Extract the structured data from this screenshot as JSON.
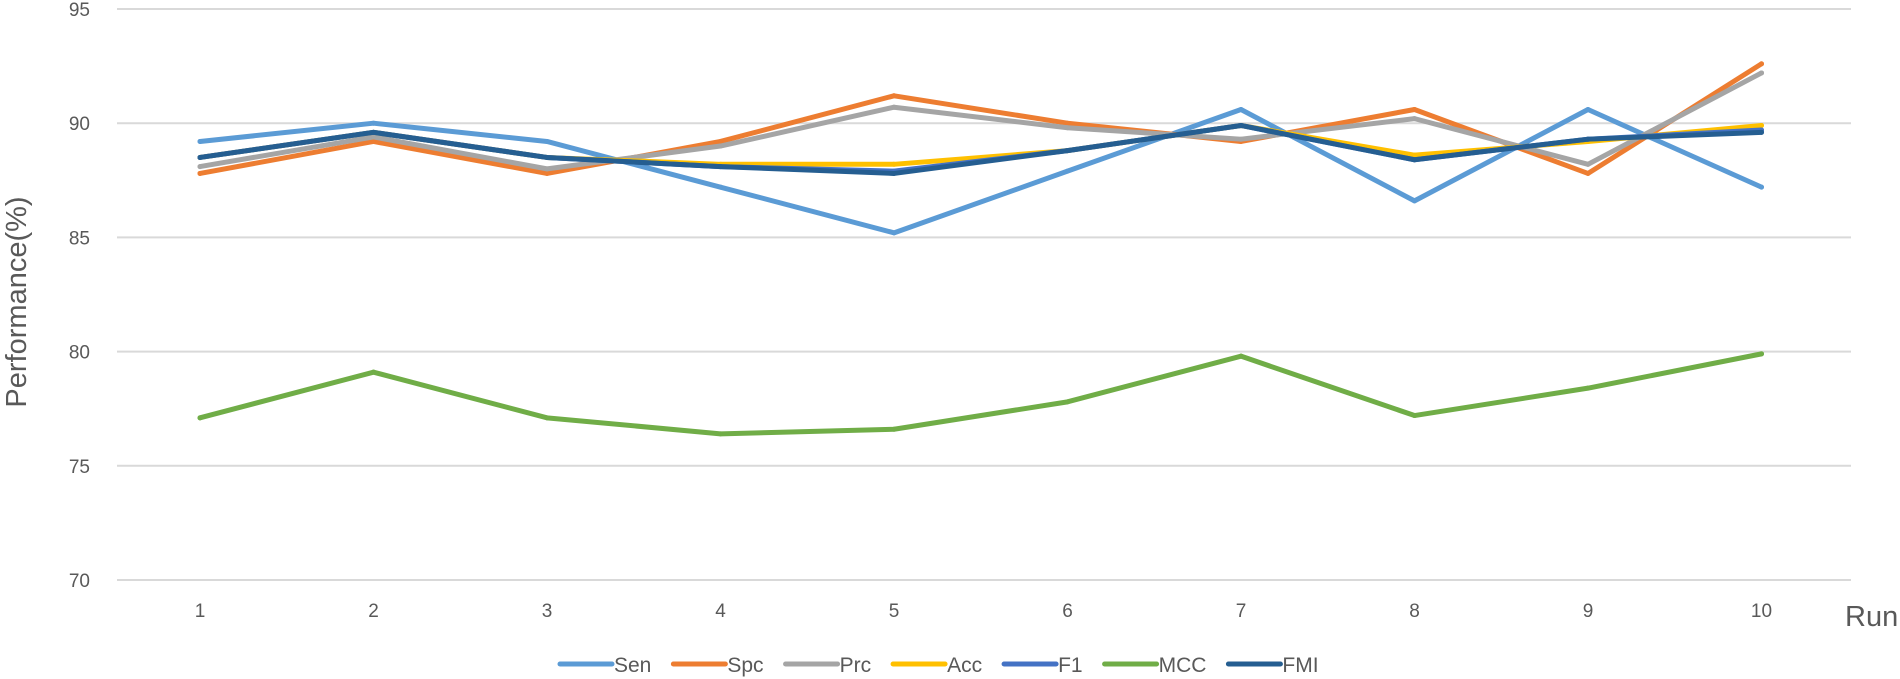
{
  "chart_data": {
    "type": "line",
    "xlabel": "Run",
    "ylabel": "Performance(%)",
    "ylim": [
      70,
      95
    ],
    "yticks": [
      70,
      75,
      80,
      85,
      90,
      95
    ],
    "categories": [
      "1",
      "2",
      "3",
      "4",
      "5",
      "6",
      "7",
      "8",
      "9",
      "10"
    ],
    "grid": true,
    "legend_position": "bottom",
    "series": [
      {
        "name": "Sen",
        "color": "#5b9bd5",
        "values": [
          89.2,
          90.0,
          89.2,
          87.2,
          85.2,
          87.9,
          90.6,
          86.6,
          90.6,
          87.2
        ]
      },
      {
        "name": "Spc",
        "color": "#ed7d31",
        "values": [
          87.8,
          89.2,
          87.8,
          89.2,
          91.2,
          90.0,
          89.2,
          90.6,
          87.8,
          92.6
        ]
      },
      {
        "name": "Prc",
        "color": "#a5a5a5",
        "values": [
          88.1,
          89.4,
          88.0,
          89.0,
          90.7,
          89.8,
          89.3,
          90.2,
          88.2,
          92.2
        ]
      },
      {
        "name": "Acc",
        "color": "#ffc000",
        "values": [
          88.5,
          89.6,
          88.5,
          88.2,
          88.2,
          88.8,
          89.9,
          88.6,
          89.2,
          89.9
        ]
      },
      {
        "name": "F1",
        "color": "#4472c4",
        "values": [
          88.5,
          89.6,
          88.5,
          88.1,
          87.9,
          88.8,
          89.9,
          88.4,
          89.3,
          89.7
        ]
      },
      {
        "name": "MCC",
        "color": "#70ad47",
        "values": [
          77.1,
          79.1,
          77.1,
          76.4,
          76.6,
          77.8,
          79.8,
          77.2,
          78.4,
          79.9
        ]
      },
      {
        "name": "FMI",
        "color": "#255e91",
        "values": [
          88.5,
          89.6,
          88.5,
          88.1,
          87.8,
          88.8,
          89.9,
          88.4,
          89.3,
          89.6
        ]
      }
    ]
  }
}
